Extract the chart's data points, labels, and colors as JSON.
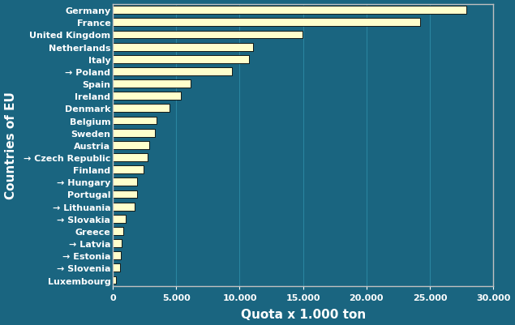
{
  "countries": [
    "Germany",
    "France",
    "United Kingdom",
    "Netherlands",
    "Italy",
    "→ Poland",
    "Spain",
    "Ireland",
    "Denmark",
    "Belgium",
    "Sweden",
    "Austria",
    "→ Czech Republic",
    "Finland",
    "→ Hungary",
    "Portugal",
    "→ Lithuania",
    "→ Slovakia",
    "Greece",
    "→ Latvia",
    "→ Estonia",
    "→ Slovenia",
    "Luxembourg"
  ],
  "values": [
    27867,
    24235,
    14932,
    11074,
    10740,
    9380,
    6116,
    5395,
    4455,
    3427,
    3303,
    2847,
    2767,
    2430,
    1947,
    1945,
    1705,
    1040,
    836,
    728,
    625,
    580,
    270
  ],
  "bar_color": "#FFFFCC",
  "bar_edge_color": "#000000",
  "background_color": "#1a6580",
  "plot_bg_color": "#1a6580",
  "text_color": "#ffffff",
  "xlabel": "Quota x 1.000 ton",
  "ylabel": "Countries of EU",
  "xlim": [
    0,
    30000
  ],
  "xticks": [
    0,
    5000,
    10000,
    15000,
    20000,
    25000,
    30000
  ],
  "xtick_labels": [
    "0",
    "5.000",
    "10.000",
    "15.000",
    "20.000",
    "25.000",
    "30.000"
  ],
  "grid_color": "#2a85a0",
  "spine_color": "#c0c0c0",
  "xlabel_fontsize": 11,
  "ylabel_fontsize": 11,
  "tick_fontsize": 8,
  "country_fontsize": 8
}
